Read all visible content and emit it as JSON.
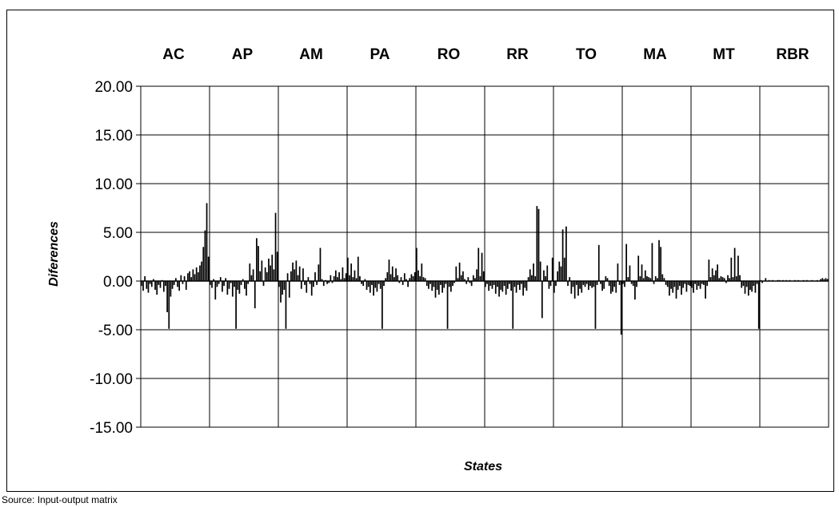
{
  "chart_data": {
    "type": "bar",
    "title": "",
    "xlabel": "States",
    "ylabel": "Diferences",
    "ylim": [
      -15,
      20
    ],
    "yticks": [
      "20.00",
      "15.00",
      "10.00",
      "5.00",
      "0.00",
      "-5.00",
      "-10.00",
      "-15.00"
    ],
    "ytick_values": [
      20,
      15,
      10,
      5,
      0,
      -5,
      -10,
      -15
    ],
    "grid": true,
    "categories": [
      "AC",
      "AP",
      "AM",
      "PA",
      "RO",
      "RR",
      "TO",
      "MA",
      "MT",
      "RBR"
    ],
    "bars_per_category": 40,
    "series": [
      {
        "values": [
          [
            -0.5,
            -1.0,
            0.5,
            -0.8,
            -1.2,
            -0.3,
            -0.6,
            0.2,
            -0.9,
            -1.4,
            -0.4,
            -0.7,
            0.1,
            -1.1,
            -0.5,
            -3.2,
            -4.9,
            -1.6,
            -0.8,
            -0.4,
            0.3,
            -0.6,
            -1.0,
            0.6,
            -0.3,
            0.5,
            -0.9,
            0.8,
            1.0,
            0.4,
            1.2,
            0.7,
            1.4,
            0.9,
            1.6,
            2.0,
            3.5,
            5.2,
            8.0,
            2.5
          ],
          [
            -0.4,
            -0.7,
            0.2,
            -1.9,
            -0.6,
            -0.3,
            0.4,
            -1.1,
            -0.5,
            0.3,
            -1.4,
            -0.8,
            -0.2,
            -1.6,
            -0.6,
            -4.9,
            -0.9,
            -1.3,
            -0.4,
            0.2,
            -0.8,
            -1.5,
            -0.3,
            1.8,
            0.6,
            1.2,
            -2.8,
            4.4,
            3.6,
            1.0,
            2.1,
            -0.5,
            1.4,
            0.9,
            2.3,
            1.6,
            2.7,
            1.2,
            7.0,
            3.0
          ],
          [
            -0.6,
            -2.2,
            -1.4,
            -0.9,
            -4.9,
            0.8,
            -1.7,
            1.0,
            1.9,
            1.2,
            2.1,
            0.6,
            1.5,
            -0.8,
            1.3,
            -0.4,
            -1.2,
            0.4,
            -0.3,
            -1.5,
            -0.6,
            0.9,
            -0.4,
            1.7,
            3.4,
            0.2,
            -0.5,
            0.1,
            -0.3,
            -0.2,
            0.6,
            -0.2,
            0.5,
            1.1,
            0.4,
            0.9,
            0.2,
            1.4,
            0.3,
            0.8
          ],
          [
            2.4,
            0.6,
            1.8,
            0.4,
            1.1,
            0.3,
            2.5,
            0.5,
            -0.3,
            -0.5,
            0.2,
            -0.9,
            -0.6,
            -1.2,
            -0.4,
            -1.5,
            -0.7,
            -1.1,
            -0.3,
            -0.8,
            -4.9,
            -0.5,
            0.3,
            0.9,
            2.2,
            0.7,
            1.5,
            0.4,
            1.3,
            0.6,
            -0.2,
            0.4,
            -0.4,
            0.8,
            0.2,
            -0.6,
            0.3,
            0.7,
            0.5,
            0.9
          ],
          [
            3.4,
            1.1,
            0.5,
            1.8,
            0.4,
            0.3,
            -0.5,
            -0.8,
            -0.3,
            -1.0,
            -0.6,
            -1.7,
            -0.9,
            -1.4,
            -0.4,
            -1.2,
            -0.7,
            -0.3,
            -4.9,
            -0.6,
            -1.1,
            -0.5,
            -0.2,
            1.5,
            0.3,
            1.9,
            0.6,
            1.0,
            0.2,
            -0.3,
            0.4,
            -0.2,
            -0.5,
            0.6,
            0.3,
            1.2,
            3.4,
            0.5,
            2.9,
            1.0
          ],
          [
            -0.6,
            -0.3,
            -1.0,
            -0.5,
            -0.8,
            -0.4,
            -1.3,
            -0.6,
            -1.6,
            -0.9,
            -1.1,
            -0.5,
            -1.4,
            -0.8,
            -0.3,
            -1.0,
            -4.9,
            -0.6,
            -1.2,
            -0.4,
            -0.9,
            -0.3,
            -1.5,
            -0.7,
            -1.0,
            0.4,
            1.2,
            0.6,
            1.8,
            0.5,
            7.7,
            7.4,
            2.0,
            -3.8,
            1.1,
            0.5,
            1.6,
            -0.8,
            -0.5,
            2.4
          ],
          [
            -1.2,
            -0.5,
            1.0,
            2.0,
            1.5,
            5.3,
            2.4,
            5.6,
            -0.5,
            0.4,
            -1.3,
            -0.6,
            -1.8,
            -0.4,
            -1.5,
            -0.8,
            -1.2,
            -0.4,
            -0.6,
            -0.3,
            -0.9,
            -0.5,
            -0.7,
            -0.6,
            -4.9,
            -0.4,
            3.7,
            -0.3,
            -1.0,
            -0.8,
            0.5,
            0.3,
            -0.5,
            -1.3,
            -1.1,
            -0.6,
            -1.2,
            1.8,
            -0.4,
            -5.5
          ],
          [
            -0.3,
            -0.6,
            3.8,
            0.4,
            1.6,
            -0.3,
            -0.5,
            -1.9,
            -0.6,
            2.6,
            0.5,
            1.7,
            0.3,
            1.1,
            0.5,
            0.4,
            0.3,
            3.9,
            -0.3,
            0.5,
            0.3,
            4.2,
            3.5,
            0.7,
            0.3,
            -0.4,
            -0.6,
            -1.5,
            -0.8,
            -1.2,
            -0.6,
            -1.8,
            -0.9,
            -0.5,
            -1.4,
            -0.7,
            -0.3,
            -1.1,
            -0.4,
            -0.5
          ],
          [
            -0.7,
            -1.2,
            -0.3,
            -0.9,
            -0.5,
            -0.8,
            -0.3,
            -0.4,
            -1.8,
            -0.5,
            2.2,
            0.4,
            1.3,
            0.6,
            1.1,
            1.7,
            0.3,
            0.5,
            0.4,
            0.3,
            -0.2,
            0.6,
            0.3,
            2.4,
            0.4,
            3.4,
            0.5,
            2.6,
            0.6,
            -0.7,
            -0.5,
            -1.3,
            -0.6,
            -1.5,
            -0.9,
            -1.1,
            -0.5,
            -1.2,
            -0.3,
            -4.9
          ],
          [
            -0.4,
            -0.9,
            -1.6,
            -0.6,
            -1.2,
            -0.3,
            -1.5,
            -0.8,
            -1.0,
            -0.5,
            0.8,
            1.8,
            2.5,
            1.4,
            3.3,
            0.9,
            4.6,
            1.2,
            -2.7,
            4.1,
            3.9,
            2.6,
            0.8,
            1.5,
            -0.5,
            -0.6,
            -0.4,
            0.5,
            -0.3,
            0.8,
            1.2,
            -0.5,
            1.8,
            -0.2,
            -0.3,
            0.6,
            -0.4,
            -0.2,
            1.9,
            -0.3
          ]
        ],
        "tail": [
          0.1,
          -0.2,
          0.0,
          0.3,
          0.0,
          0.1,
          0.0,
          0.1,
          0.0,
          0.0,
          0.1,
          0.1,
          0.0,
          0.1,
          0.0,
          0.1,
          0.0,
          0.1,
          0.0,
          0.0,
          0.1,
          0.0,
          0.1,
          0.0,
          0.0,
          0.1,
          0.0,
          0.1,
          0.0,
          0.0,
          0.1,
          0.0,
          0.0,
          0.1,
          0.0,
          0.2,
          0.3,
          0.2,
          0.3,
          0.2
        ]
      }
    ],
    "color": "#000000"
  },
  "source_note": "Source: Input-output matrix"
}
